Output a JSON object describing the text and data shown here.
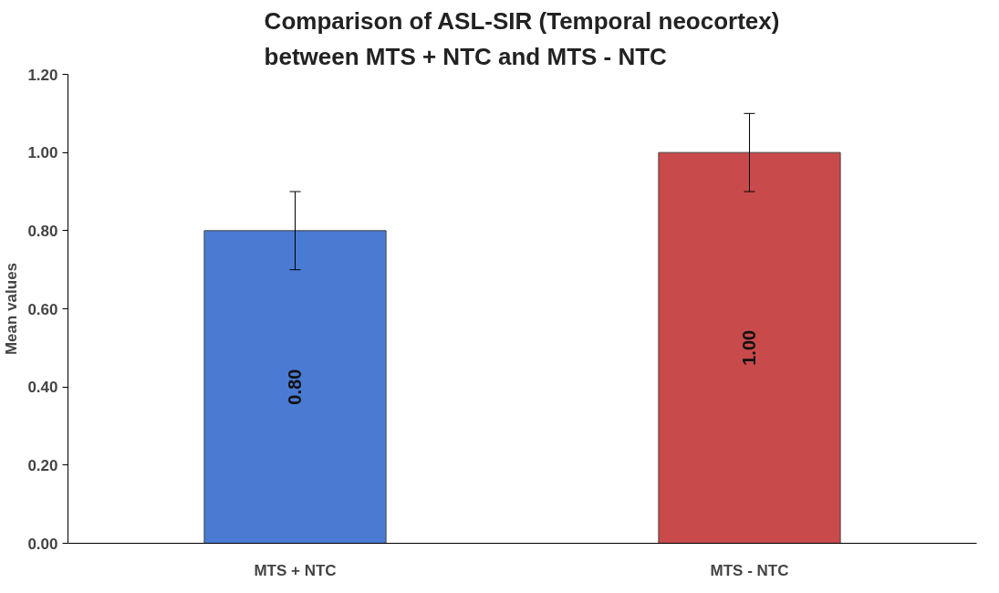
{
  "chart_data": {
    "type": "bar",
    "title": "Comparison of ASL-SIR (Temporal neocortex)\nbetween MTS + NTC and MTS - NTC",
    "ylabel": "Mean values",
    "categories": [
      "MTS + NTC",
      "MTS - NTC"
    ],
    "values": [
      0.8,
      1.0
    ],
    "colors": [
      "#4a7bd2",
      "#c94a4a"
    ],
    "errors": [
      0.1,
      0.1
    ],
    "value_labels": [
      "0.80",
      "1.00"
    ],
    "ylim": [
      0,
      1.2
    ],
    "yticks": [
      {
        "value": 0,
        "label": "0.00"
      },
      {
        "value": 0.2,
        "label": "0.20"
      },
      {
        "value": 0.4,
        "label": "0.40"
      },
      {
        "value": 0.6,
        "label": "0.60"
      },
      {
        "value": 0.8,
        "label": "0.80"
      },
      {
        "value": 1.0,
        "label": "1.00"
      },
      {
        "value": 1.2,
        "label": "1.20"
      }
    ],
    "grid": false
  }
}
